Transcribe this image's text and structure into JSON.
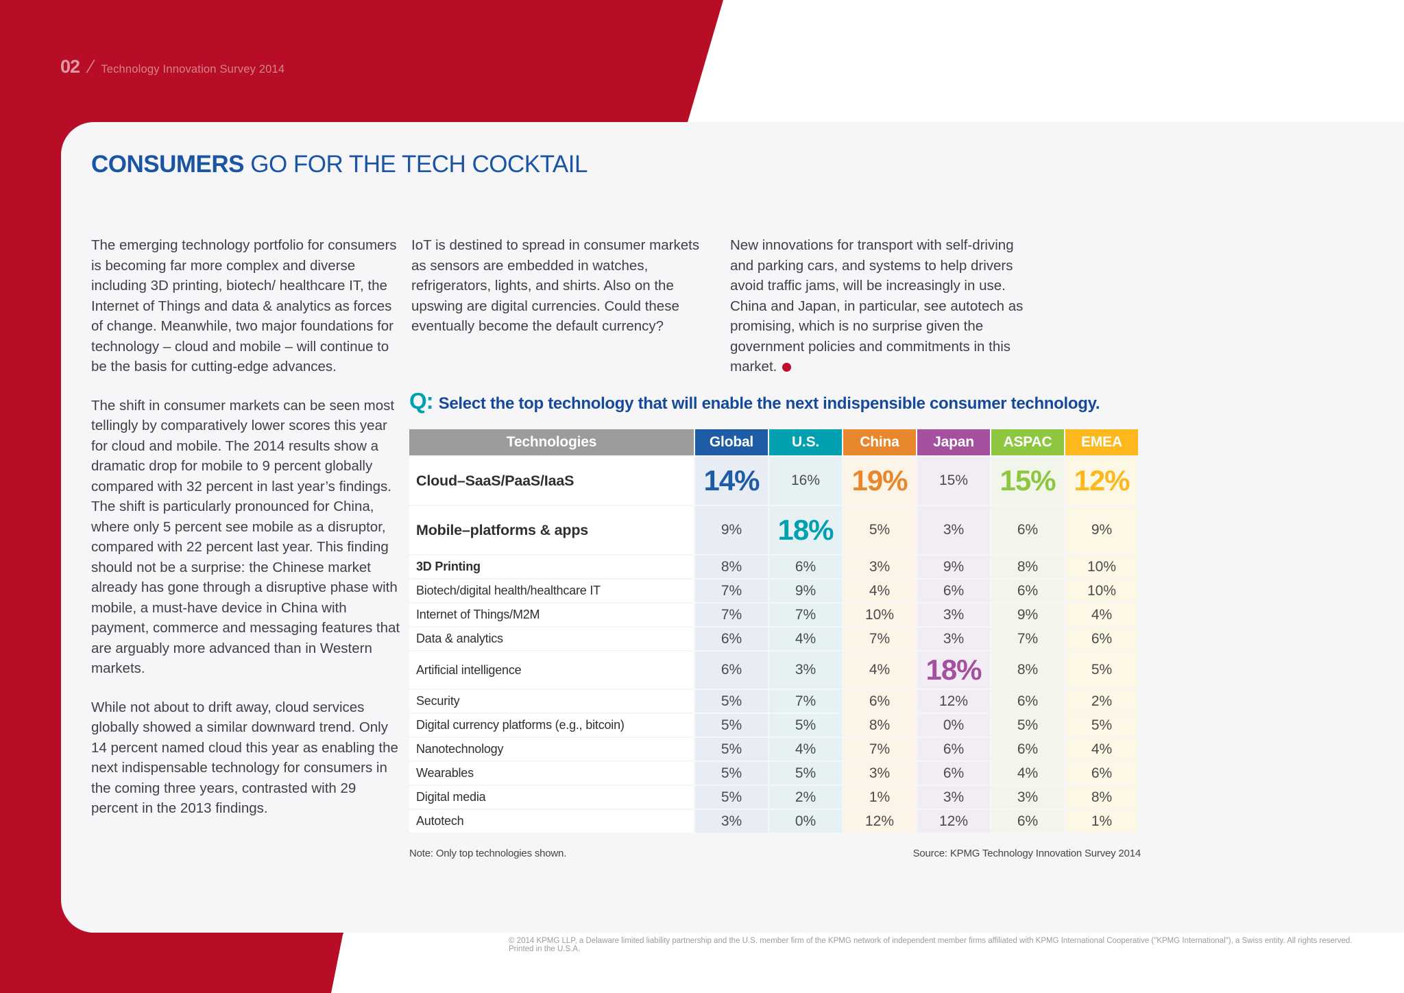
{
  "page": {
    "number": "02",
    "slash": "/",
    "doc_title": "Technology Innovation Survey 2014",
    "footer": "© 2014 KPMG LLP, a Delaware limited liability partnership and the U.S. member firm of the KPMG network of independent member firms affiliated with KPMG International Cooperative (\"KPMG International\"), a Swiss entity. All rights reserved. Printed in the U.S.A.",
    "red_color": "#b70d26",
    "card_color": "#f6f5f7"
  },
  "article": {
    "title_emphasis": "CONSUMERS",
    "title_rest": " GO FOR THE TECH COCKTAIL",
    "col1_p1": "The emerging technology portfolio for consumers is becoming far more complex and diverse including 3D printing, biotech/ healthcare IT, the Internet of Things and data & analytics as forces of change. Meanwhile, two major foundations for technology – cloud and mobile – will continue to be the basis for cutting-edge advances.",
    "col1_p2": "The shift in consumer markets can be seen most tellingly by comparatively lower scores this year for cloud and mobile. The 2014 results show a dramatic drop for mobile to 9 percent globally compared with 32 percent in last year’s findings. The shift is particularly pronounced for China, where only 5 percent see mobile as a disruptor, compared with 22 percent last year. This finding should not be a surprise: the Chinese market already has gone through a disruptive phase with mobile, a must-have device in China with payment, commerce and messaging features that are arguably more advanced than in Western markets.",
    "col1_p3": "While not about to drift away, cloud services globally showed a similar downward trend. Only 14 percent named cloud this year as enabling the next indispensable technology for consumers in the coming three years, contrasted with 29 percent in the 2013 findings.",
    "col2_p1": "IoT is destined to spread in consumer markets as sensors are embedded in watches, refrigerators, lights, and shirts. Also on the upswing are digital currencies. Could these eventually become the default currency?",
    "col3_p1": "New innovations for transport with self-driving and parking cars, and systems to help drivers avoid traffic jams, will be increasingly in use. China and Japan, in particular, see autotech as promising, which is no surprise given the government policies and commitments in this market."
  },
  "question": {
    "prefix": "Q:",
    "text": "Select the top technology that will enable the next indispensible consumer technology."
  },
  "chart_data": {
    "type": "table",
    "title": "Select the top technology that will enable the next indispensible consumer technology.",
    "label_header": "Technologies",
    "label_header_color": "#9c9b9d",
    "columns": [
      {
        "key": "global",
        "label": "Global",
        "header_color": "#1e5da6",
        "tint": "#e8ecf4"
      },
      {
        "key": "us",
        "label": "U.S.",
        "header_color": "#00a0b0",
        "tint": "#e6f1f4"
      },
      {
        "key": "china",
        "label": "China",
        "header_color": "#e8872b",
        "tint": "#fcf4e6"
      },
      {
        "key": "japan",
        "label": "Japan",
        "header_color": "#a5509f",
        "tint": "#f2edf5"
      },
      {
        "key": "aspac",
        "label": "ASPAC",
        "header_color": "#8dc63f",
        "tint": "#f1f5ea"
      },
      {
        "key": "emea",
        "label": "EMEA",
        "header_color": "#fdb81e",
        "tint": "#fcf8e5"
      }
    ],
    "rows": [
      {
        "label": "Cloud–SaaS/PaaS/IaaS",
        "label_style": "big",
        "size": "tall",
        "cells": [
          {
            "value": "14%",
            "highlight": true
          },
          {
            "value": "16%",
            "highlight": false
          },
          {
            "value": "19%",
            "highlight": true
          },
          {
            "value": "15%",
            "highlight": false
          },
          {
            "value": "15%",
            "highlight": true
          },
          {
            "value": "12%",
            "highlight": true
          }
        ]
      },
      {
        "label": "Mobile–platforms & apps",
        "label_style": "big",
        "size": "tall",
        "cells": [
          {
            "value": "9%",
            "highlight": false
          },
          {
            "value": "18%",
            "highlight": true
          },
          {
            "value": "5%",
            "highlight": false
          },
          {
            "value": "3%",
            "highlight": false
          },
          {
            "value": "6%",
            "highlight": false
          },
          {
            "value": "9%",
            "highlight": false
          }
        ]
      },
      {
        "label": "3D Printing",
        "label_style": "bold",
        "size": "normal",
        "cells": [
          {
            "value": "8%",
            "highlight": false
          },
          {
            "value": "6%",
            "highlight": false
          },
          {
            "value": "3%",
            "highlight": false
          },
          {
            "value": "9%",
            "highlight": false
          },
          {
            "value": "8%",
            "highlight": false
          },
          {
            "value": "10%",
            "highlight": false
          }
        ]
      },
      {
        "label": "Biotech/digital health/healthcare IT",
        "label_style": "normal",
        "size": "normal",
        "cells": [
          {
            "value": "7%",
            "highlight": false
          },
          {
            "value": "9%",
            "highlight": false
          },
          {
            "value": "4%",
            "highlight": false
          },
          {
            "value": "6%",
            "highlight": false
          },
          {
            "value": "6%",
            "highlight": false
          },
          {
            "value": "10%",
            "highlight": false
          }
        ]
      },
      {
        "label": "Internet of Things/M2M",
        "label_style": "normal",
        "size": "normal",
        "cells": [
          {
            "value": "7%",
            "highlight": false
          },
          {
            "value": "7%",
            "highlight": false
          },
          {
            "value": "10%",
            "highlight": false
          },
          {
            "value": "3%",
            "highlight": false
          },
          {
            "value": "9%",
            "highlight": false
          },
          {
            "value": "4%",
            "highlight": false
          }
        ]
      },
      {
        "label": "Data & analytics",
        "label_style": "normal",
        "size": "normal",
        "cells": [
          {
            "value": "6%",
            "highlight": false
          },
          {
            "value": "4%",
            "highlight": false
          },
          {
            "value": "7%",
            "highlight": false
          },
          {
            "value": "3%",
            "highlight": false
          },
          {
            "value": "7%",
            "highlight": false
          },
          {
            "value": "6%",
            "highlight": false
          }
        ]
      },
      {
        "label": "Artificial intelligence",
        "label_style": "normal",
        "size": "medium",
        "cells": [
          {
            "value": "6%",
            "highlight": false
          },
          {
            "value": "3%",
            "highlight": false
          },
          {
            "value": "4%",
            "highlight": false
          },
          {
            "value": "18%",
            "highlight": true
          },
          {
            "value": "8%",
            "highlight": false
          },
          {
            "value": "5%",
            "highlight": false
          }
        ]
      },
      {
        "label": "Security",
        "label_style": "normal",
        "size": "normal",
        "cells": [
          {
            "value": "5%",
            "highlight": false
          },
          {
            "value": "7%",
            "highlight": false
          },
          {
            "value": "6%",
            "highlight": false
          },
          {
            "value": "12%",
            "highlight": false
          },
          {
            "value": "6%",
            "highlight": false
          },
          {
            "value": "2%",
            "highlight": false
          }
        ]
      },
      {
        "label": "Digital currency platforms (e.g., bitcoin)",
        "label_style": "normal",
        "size": "normal",
        "cells": [
          {
            "value": "5%",
            "highlight": false
          },
          {
            "value": "5%",
            "highlight": false
          },
          {
            "value": "8%",
            "highlight": false
          },
          {
            "value": "0%",
            "highlight": false
          },
          {
            "value": "5%",
            "highlight": false
          },
          {
            "value": "5%",
            "highlight": false
          }
        ]
      },
      {
        "label": "Nanotechnology",
        "label_style": "normal",
        "size": "normal",
        "cells": [
          {
            "value": "5%",
            "highlight": false
          },
          {
            "value": "4%",
            "highlight": false
          },
          {
            "value": "7%",
            "highlight": false
          },
          {
            "value": "6%",
            "highlight": false
          },
          {
            "value": "6%",
            "highlight": false
          },
          {
            "value": "4%",
            "highlight": false
          }
        ]
      },
      {
        "label": "Wearables",
        "label_style": "normal",
        "size": "normal",
        "cells": [
          {
            "value": "5%",
            "highlight": false
          },
          {
            "value": "5%",
            "highlight": false
          },
          {
            "value": "3%",
            "highlight": false
          },
          {
            "value": "6%",
            "highlight": false
          },
          {
            "value": "4%",
            "highlight": false
          },
          {
            "value": "6%",
            "highlight": false
          }
        ]
      },
      {
        "label": "Digital media",
        "label_style": "normal",
        "size": "normal",
        "cells": [
          {
            "value": "5%",
            "highlight": false
          },
          {
            "value": "2%",
            "highlight": false
          },
          {
            "value": "1%",
            "highlight": false
          },
          {
            "value": "3%",
            "highlight": false
          },
          {
            "value": "3%",
            "highlight": false
          },
          {
            "value": "8%",
            "highlight": false
          }
        ]
      },
      {
        "label": "Autotech",
        "label_style": "normal",
        "size": "normal",
        "cells": [
          {
            "value": "3%",
            "highlight": false
          },
          {
            "value": "0%",
            "highlight": false
          },
          {
            "value": "12%",
            "highlight": false
          },
          {
            "value": "12%",
            "highlight": false
          },
          {
            "value": "6%",
            "highlight": false
          },
          {
            "value": "1%",
            "highlight": false
          }
        ]
      }
    ],
    "note": "Note: Only top technologies shown.",
    "source": "Source: KPMG Technology Innovation Survey 2014"
  }
}
